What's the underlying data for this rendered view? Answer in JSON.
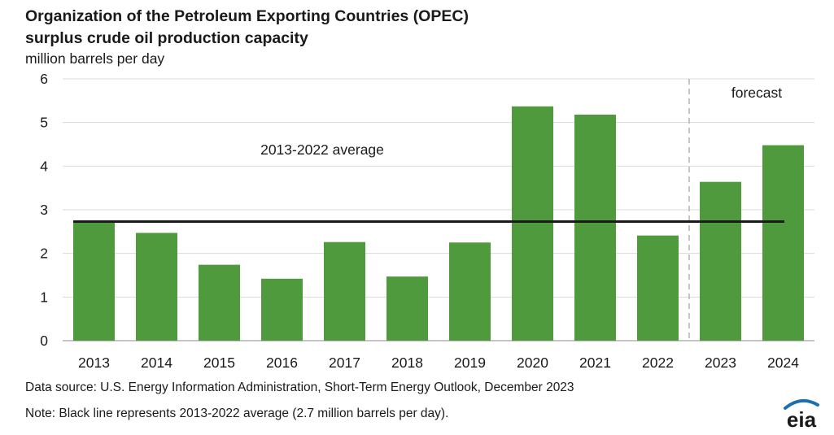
{
  "header": {
    "title_line1": "Organization of the Petroleum Exporting Countries (OPEC)",
    "title_line2": "surplus crude oil production capacity",
    "units": "million barrels per day"
  },
  "chart_data": {
    "type": "bar",
    "title": "Organization of the Petroleum Exporting Countries (OPEC) surplus crude oil production capacity",
    "ylabel": "million barrels per day",
    "xlabel": "",
    "ylim": [
      0,
      6
    ],
    "yticks": [
      0,
      1,
      2,
      3,
      4,
      5,
      6
    ],
    "categories": [
      "2013",
      "2014",
      "2015",
      "2016",
      "2017",
      "2018",
      "2019",
      "2020",
      "2021",
      "2022",
      "2023",
      "2024"
    ],
    "values": [
      2.73,
      2.47,
      1.74,
      1.42,
      2.26,
      1.47,
      2.25,
      5.37,
      5.18,
      2.41,
      3.64,
      4.48
    ],
    "bar_color": "#4f9a3d",
    "average_line": {
      "label": "2013-2022 average",
      "value": 2.73,
      "color": "#1a1a1a"
    },
    "forecast": {
      "label": "forecast",
      "starts_at": "2023"
    },
    "grid": "horizontal",
    "legend": "none"
  },
  "footer": {
    "source": "Data source: U.S. Energy Information Administration, Short-Term Energy Outlook, December 2023",
    "note": "Note: Black line represents 2013-2022 average (2.7 million barrels per day)."
  },
  "logo": {
    "text": "eia",
    "icon": "eia-logo-icon",
    "color": "#1a6fb0"
  }
}
